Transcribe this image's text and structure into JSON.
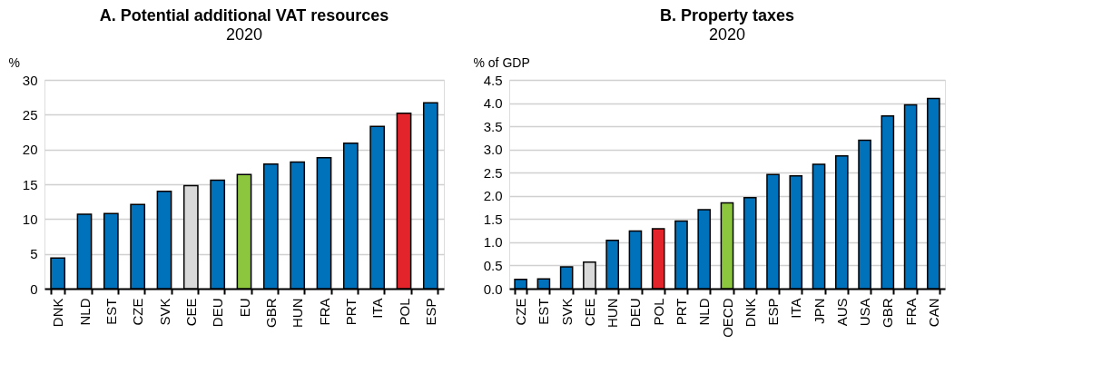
{
  "chart_data": [
    {
      "type": "bar",
      "title": "A. Potential additional VAT resources",
      "subtitle": "2020",
      "ylabel": "%",
      "categories": [
        "DNK",
        "NLD",
        "EST",
        "CZE",
        "SVK",
        "CEE",
        "DEU",
        "EU",
        "GBR",
        "HUN",
        "FRA",
        "PRT",
        "ITA",
        "POL",
        "ESP"
      ],
      "values": [
        4.4,
        10.7,
        10.8,
        12.1,
        14.0,
        14.8,
        15.6,
        16.4,
        17.9,
        18.2,
        18.8,
        20.9,
        23.3,
        25.2,
        26.7
      ],
      "colors": [
        "#0072bc",
        "#0072bc",
        "#0072bc",
        "#0072bc",
        "#0072bc",
        "#d9d9d9",
        "#0072bc",
        "#8cc63f",
        "#0072bc",
        "#0072bc",
        "#0072bc",
        "#0072bc",
        "#0072bc",
        "#e3242b",
        "#0072bc"
      ],
      "ylim": [
        0,
        30
      ],
      "yticks": [
        0,
        5,
        10,
        15,
        20,
        25,
        30
      ],
      "grid": "y"
    },
    {
      "type": "bar",
      "title": "B. Property taxes",
      "subtitle": "2020",
      "ylabel": "% of GDP",
      "categories": [
        "CZE",
        "EST",
        "SVK",
        "CEE",
        "HUN",
        "DEU",
        "POL",
        "PRT",
        "NLD",
        "OECD",
        "DNK",
        "ESP",
        "ITA",
        "JPN",
        "AUS",
        "USA",
        "GBR",
        "FRA",
        "CAN"
      ],
      "values": [
        0.2,
        0.21,
        0.47,
        0.57,
        1.04,
        1.24,
        1.29,
        1.46,
        1.7,
        1.85,
        1.96,
        2.46,
        2.43,
        2.68,
        2.86,
        3.2,
        3.72,
        3.96,
        4.1
      ],
      "colors": [
        "#0072bc",
        "#0072bc",
        "#0072bc",
        "#d9d9d9",
        "#0072bc",
        "#0072bc",
        "#e3242b",
        "#0072bc",
        "#0072bc",
        "#8cc63f",
        "#0072bc",
        "#0072bc",
        "#0072bc",
        "#0072bc",
        "#0072bc",
        "#0072bc",
        "#0072bc",
        "#0072bc",
        "#0072bc"
      ],
      "ylim": [
        0,
        4.5
      ],
      "yticks": [
        {
          "value": 0,
          "label": "0.0"
        },
        {
          "value": 0.5,
          "label": "0.5"
        },
        {
          "value": 1,
          "label": "1.0"
        },
        {
          "value": 1.5,
          "label": "1.5"
        },
        {
          "value": 2,
          "label": "2.0"
        },
        {
          "value": 2.5,
          "label": "2.5"
        },
        {
          "value": 3,
          "label": "3.0"
        },
        {
          "value": 3.5,
          "label": "3.5"
        },
        {
          "value": 4,
          "label": "4.0"
        },
        {
          "value": 4.5,
          "label": "4.5"
        }
      ],
      "grid": "y"
    }
  ]
}
